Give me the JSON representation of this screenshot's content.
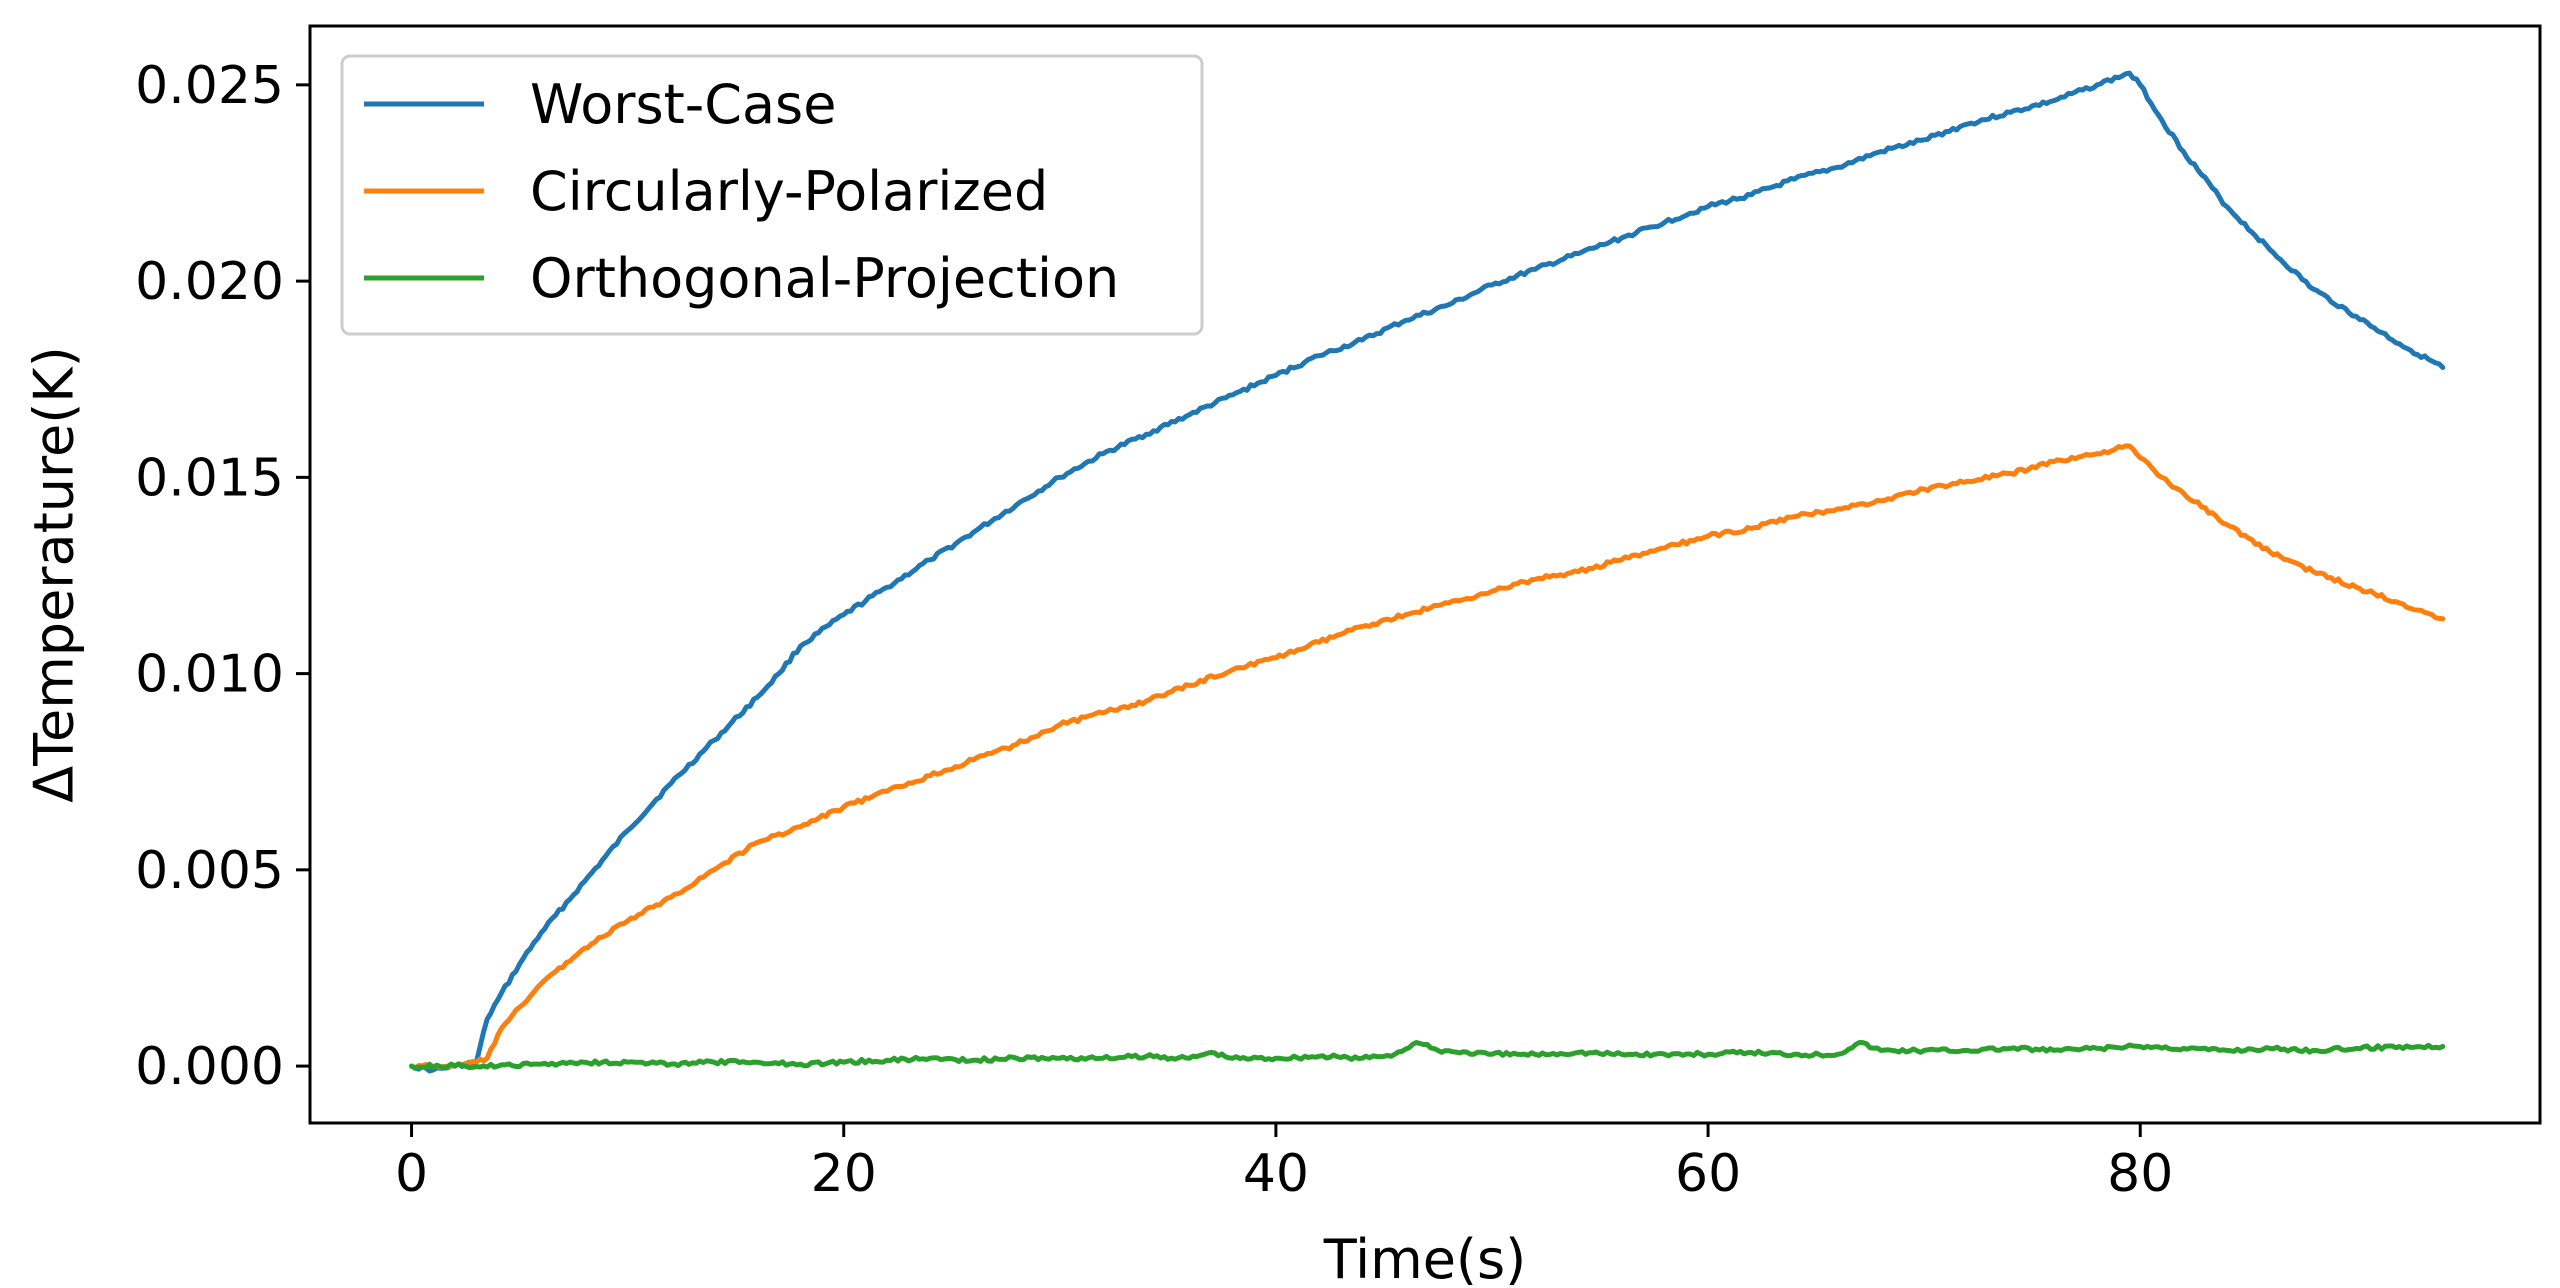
{
  "chart_data": {
    "type": "line",
    "title": "",
    "xlabel": "Time(s)",
    "ylabel": "ΔTemperature(K)",
    "xlim": [
      -4.7,
      98.5
    ],
    "ylim": [
      -0.00145,
      0.0265
    ],
    "grid": false,
    "legend_position": "top-left",
    "x_ticks": [
      0,
      20,
      40,
      60,
      80
    ],
    "x_tick_labels": [
      "0",
      "20",
      "40",
      "60",
      "80"
    ],
    "y_ticks": [
      0.0,
      0.005,
      0.01,
      0.015,
      0.02,
      0.025
    ],
    "y_tick_labels": [
      "0.000",
      "0.005",
      "0.010",
      "0.015",
      "0.020",
      "0.025"
    ],
    "series": [
      {
        "name": "Worst-Case",
        "color": "#1f77b4",
        "x": [
          0,
          1,
          2,
          3,
          3.5,
          4,
          5,
          6,
          8,
          10,
          12,
          14,
          16,
          17,
          18,
          20,
          22,
          24,
          26,
          28,
          30,
          32,
          34,
          36,
          38,
          40,
          42,
          44,
          46,
          48,
          50,
          52,
          54,
          56,
          58,
          60,
          62,
          64,
          66,
          68,
          70,
          72,
          74,
          76,
          78,
          79.5,
          80,
          81,
          82,
          84,
          86,
          88,
          90,
          92,
          94
        ],
        "y": [
          0.0,
          -0.0001,
          0.0,
          0.0001,
          0.0012,
          0.0017,
          0.0026,
          0.0034,
          0.0047,
          0.006,
          0.0072,
          0.0083,
          0.0094,
          0.01,
          0.0107,
          0.0115,
          0.0122,
          0.0129,
          0.0136,
          0.0143,
          0.015,
          0.0156,
          0.0161,
          0.0166,
          0.0171,
          0.0176,
          0.0181,
          0.0185,
          0.019,
          0.0194,
          0.0199,
          0.0203,
          0.0207,
          0.0211,
          0.0215,
          0.0219,
          0.0222,
          0.0226,
          0.0229,
          0.0233,
          0.0236,
          0.024,
          0.0243,
          0.0246,
          0.025,
          0.0253,
          0.025,
          0.0241,
          0.0233,
          0.0219,
          0.0208,
          0.0198,
          0.0191,
          0.0184,
          0.0178
        ]
      },
      {
        "name": "Circularly-Polarized",
        "color": "#ff7f0e",
        "x": [
          0,
          1,
          2,
          3,
          3.5,
          4,
          5,
          6,
          8,
          10,
          12,
          14,
          16,
          18,
          20,
          22,
          24,
          26,
          28,
          30,
          32,
          34,
          36,
          38,
          40,
          42,
          44,
          46,
          48,
          50,
          52,
          54,
          56,
          58,
          60,
          62,
          64,
          66,
          68,
          70,
          72,
          74,
          76,
          78,
          79.5,
          80,
          81,
          82,
          84,
          86,
          88,
          90,
          92,
          94
        ],
        "y": [
          0.0,
          0.0,
          0.0,
          0.0001,
          0.0002,
          0.0008,
          0.0015,
          0.0021,
          0.003,
          0.0037,
          0.0043,
          0.005,
          0.0057,
          0.0061,
          0.0066,
          0.007,
          0.0074,
          0.0078,
          0.0082,
          0.0087,
          0.009,
          0.0093,
          0.0097,
          0.0101,
          0.0104,
          0.0108,
          0.0112,
          0.0115,
          0.0118,
          0.0121,
          0.0124,
          0.0126,
          0.0129,
          0.0132,
          0.0135,
          0.0137,
          0.014,
          0.0142,
          0.0144,
          0.0147,
          0.0149,
          0.0151,
          0.0154,
          0.0156,
          0.0158,
          0.0155,
          0.015,
          0.0146,
          0.0138,
          0.0131,
          0.0126,
          0.0122,
          0.0118,
          0.0114
        ]
      },
      {
        "name": "Orthogonal-Projection",
        "color": "#2ca02c",
        "x": [
          0,
          2,
          4,
          6,
          8,
          10,
          12,
          14,
          16,
          18,
          20,
          22,
          24,
          26,
          28,
          30,
          32,
          34,
          36,
          37,
          38,
          40,
          42,
          44,
          45.5,
          46.5,
          47.5,
          50,
          52,
          54,
          56,
          58,
          60,
          62,
          64,
          66,
          67,
          68,
          70,
          72,
          74,
          76,
          78,
          80,
          82,
          84,
          86,
          88,
          90,
          92,
          94
        ],
        "y": [
          0.0,
          0.0,
          0.0,
          5e-05,
          0.0001,
          0.0001,
          5e-05,
          0.0001,
          0.0001,
          5e-05,
          0.0001,
          0.00015,
          0.0002,
          0.00015,
          0.0002,
          0.0002,
          0.0002,
          0.00025,
          0.0002,
          0.00035,
          0.0002,
          0.0002,
          0.00025,
          0.0002,
          0.0003,
          0.0006,
          0.0004,
          0.0003,
          0.0003,
          0.00035,
          0.0003,
          0.0003,
          0.0003,
          0.00035,
          0.0003,
          0.0003,
          0.0006,
          0.0004,
          0.0004,
          0.0004,
          0.00045,
          0.0004,
          0.00045,
          0.0005,
          0.00045,
          0.0004,
          0.00045,
          0.0004,
          0.00045,
          0.0005,
          0.0005
        ]
      }
    ]
  }
}
